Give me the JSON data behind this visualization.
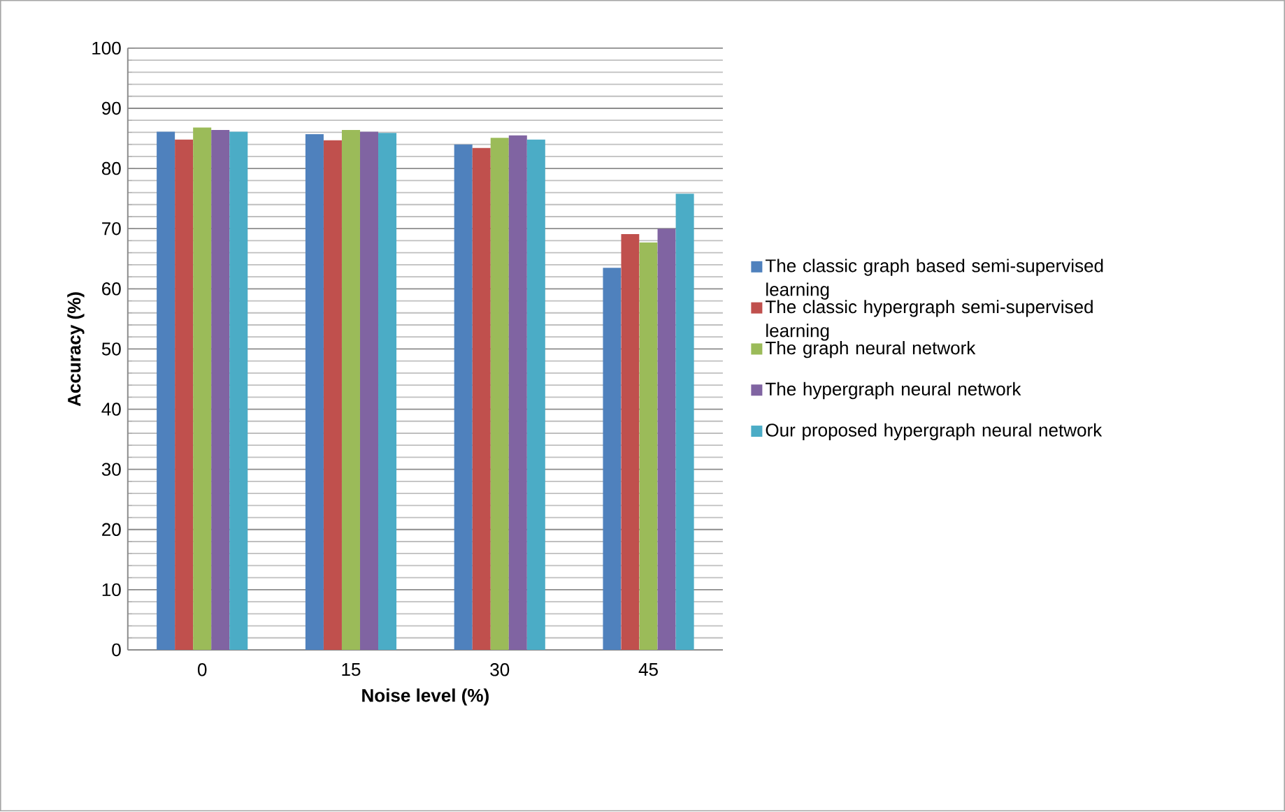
{
  "chart_data": {
    "type": "bar",
    "xlabel": "Noise level (%)",
    "ylabel": "Accuracy (%)",
    "categories": [
      "0",
      "15",
      "30",
      "45"
    ],
    "ylim": [
      0,
      100
    ],
    "yticks": [
      0,
      10,
      20,
      30,
      40,
      50,
      60,
      70,
      80,
      90,
      100
    ],
    "grid": "y",
    "legend": "right",
    "series": [
      {
        "name": "The classic graph based semi-supervised learning",
        "color": "#4f81bd",
        "values": [
          86.1,
          85.7,
          84.0,
          63.5
        ]
      },
      {
        "name": "The classic hypergraph semi-supervised learning",
        "color": "#c0504d",
        "values": [
          84.8,
          84.7,
          83.4,
          69.1
        ]
      },
      {
        "name": "The graph neural network",
        "color": "#9bbb59",
        "values": [
          86.8,
          86.4,
          85.1,
          67.7
        ]
      },
      {
        "name": "The hypergraph neural network",
        "color": "#8064a2",
        "values": [
          86.4,
          86.1,
          85.5,
          70.0
        ]
      },
      {
        "name": "Our proposed hypergraph neural network",
        "color": "#4bacc6",
        "values": [
          86.1,
          85.9,
          84.8,
          75.8
        ]
      }
    ]
  }
}
